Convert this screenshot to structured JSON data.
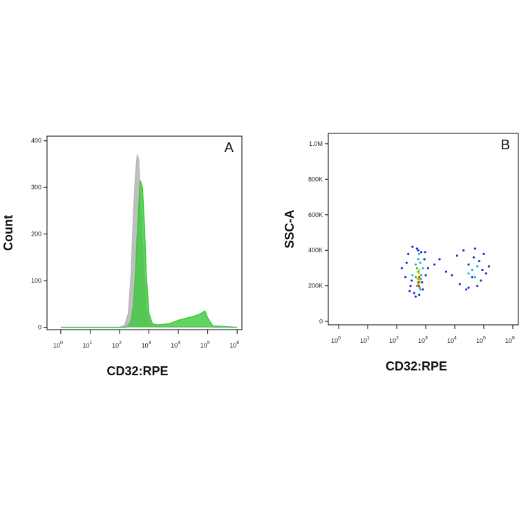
{
  "chart_data": [
    {
      "type": "area",
      "panel_label": "A",
      "ylabel": "Count",
      "xlabel": "CD32:RPE",
      "xscale": "log",
      "xlim": [
        0.34,
        1450000
      ],
      "ylim": [
        -5,
        410
      ],
      "xticks": [
        {
          "value": 1,
          "label": "10",
          "sup": "0"
        },
        {
          "value": 10,
          "label": "10",
          "sup": "1"
        },
        {
          "value": 100,
          "label": "10",
          "sup": "2"
        },
        {
          "value": 1000,
          "label": "10",
          "sup": "3"
        },
        {
          "value": 10000,
          "label": "10",
          "sup": "4"
        },
        {
          "value": 100000,
          "label": "10",
          "sup": "5"
        },
        {
          "value": 1000000,
          "label": "10",
          "sup": "6"
        }
      ],
      "yticks": [
        0,
        100,
        200,
        300,
        400
      ],
      "x": [
        1,
        10,
        100,
        150,
        200,
        250,
        300,
        350,
        400,
        450,
        500,
        600,
        700,
        800,
        1000,
        1300,
        2000,
        5000,
        10000,
        20000,
        40000,
        60000,
        80000,
        100000,
        150000,
        1000000
      ],
      "series": [
        {
          "color": "#b8b8b8",
          "values": [
            0,
            0,
            0,
            5,
            30,
            120,
            250,
            330,
            370,
            360,
            280,
            180,
            100,
            40,
            10,
            3,
            1,
            1,
            1,
            1,
            1,
            1,
            1,
            1,
            0,
            0
          ]
        },
        {
          "color": "#3cc83c",
          "values": [
            0,
            0,
            0,
            0,
            3,
            15,
            50,
            120,
            200,
            260,
            315,
            300,
            220,
            120,
            30,
            8,
            5,
            8,
            15,
            20,
            25,
            30,
            35,
            20,
            3,
            0
          ]
        }
      ]
    },
    {
      "type": "scatter",
      "panel_label": "B",
      "ylabel": "SSC-A",
      "xlabel": "CD32:RPE",
      "xscale": "log",
      "xlim": [
        0.44,
        1550000
      ],
      "ylim": [
        -19000,
        1058000
      ],
      "xticks": [
        {
          "value": 1,
          "label": "10",
          "sup": "0"
        },
        {
          "value": 10,
          "label": "10",
          "sup": "1"
        },
        {
          "value": 100,
          "label": "10",
          "sup": "2"
        },
        {
          "value": 1000,
          "label": "10",
          "sup": "3"
        },
        {
          "value": 10000,
          "label": "10",
          "sup": "4"
        },
        {
          "value": 100000,
          "label": "10",
          "sup": "5"
        },
        {
          "value": 1000000,
          "label": "10",
          "sup": "6"
        }
      ],
      "yticks": [
        0,
        {
          "value": 200000,
          "label": "200K"
        },
        {
          "value": 400000,
          "label": "400K"
        },
        {
          "value": 600000,
          "label": "600K"
        },
        {
          "value": 800000,
          "label": "800K"
        },
        {
          "value": 1000000,
          "label": "1.0M"
        }
      ],
      "series": [
        {
          "color": "#1a2fd0",
          "x": [
            150,
            200,
            250,
            300,
            350,
            400,
            500,
            600,
            700,
            800,
            900,
            1000,
            1200,
            220,
            280,
            330,
            450,
            550,
            750,
            950,
            2000,
            3000,
            5000,
            8000,
            12000,
            15000,
            20000,
            25000,
            30000,
            40000,
            50000,
            60000,
            70000,
            80000,
            100000,
            120000,
            150000,
            30000,
            45000,
            90000
          ],
          "y": [
            300000,
            250000,
            380000,
            200000,
            420000,
            160000,
            410000,
            150000,
            390000,
            180000,
            350000,
            260000,
            300000,
            330000,
            170000,
            230000,
            140000,
            400000,
            220000,
            390000,
            320000,
            350000,
            280000,
            260000,
            370000,
            210000,
            400000,
            180000,
            320000,
            250000,
            410000,
            200000,
            340000,
            230000,
            380000,
            270000,
            310000,
            190000,
            360000,
            290000
          ]
        },
        {
          "color": "#10b8e0",
          "x": [
            350,
            450,
            500,
            600,
            700,
            800,
            550,
            650,
            40000,
            50000,
            30000,
            60000
          ],
          "y": [
            260000,
            320000,
            200000,
            380000,
            240000,
            300000,
            350000,
            180000,
            290000,
            250000,
            270000,
            310000
          ]
        },
        {
          "color": "#30c040",
          "x": [
            450,
            550,
            600,
            650,
            700,
            500,
            620,
            580
          ],
          "y": [
            250000,
            280000,
            220000,
            330000,
            260000,
            300000,
            190000,
            240000
          ]
        },
        {
          "color": "#e0d000",
          "x": [
            520,
            580,
            620,
            560,
            600
          ],
          "y": [
            240000,
            270000,
            230000,
            210000,
            290000
          ]
        },
        {
          "color": "#d03010",
          "x": [
            560,
            600,
            580
          ],
          "y": [
            220000,
            250000,
            200000
          ]
        }
      ]
    }
  ]
}
